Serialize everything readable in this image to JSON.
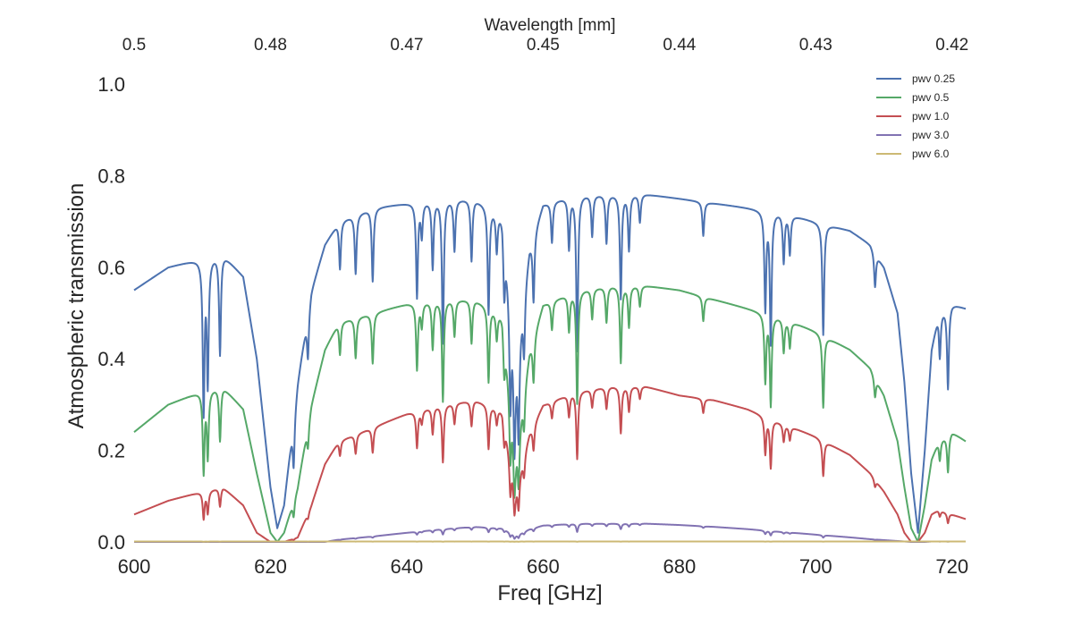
{
  "chart_data": {
    "type": "line",
    "title": "",
    "xlabel": "Freq [GHz]",
    "ylabel": "Atmospheric transmission",
    "top_xlabel": "Wavelength [mm]",
    "xlim": [
      600,
      722
    ],
    "ylim": [
      0,
      1.0
    ],
    "x_ticks": [
      600,
      620,
      640,
      660,
      680,
      700,
      720
    ],
    "y_ticks": [
      "0.0",
      "0.2",
      "0.4",
      "0.6",
      "0.8",
      "1.0"
    ],
    "top_ticks": [
      {
        "label": "0.5",
        "freq": 600
      },
      {
        "label": "0.48",
        "freq": 620
      },
      {
        "label": "0.47",
        "freq": 640
      },
      {
        "label": "0.45",
        "freq": 660
      },
      {
        "label": "0.44",
        "freq": 680
      },
      {
        "label": "0.43",
        "freq": 700
      },
      {
        "label": "0.42",
        "freq": 720
      }
    ],
    "grid": false,
    "legend_position": "top-right",
    "x": [
      600,
      605,
      610,
      613,
      616,
      618,
      620,
      621,
      622,
      624,
      626,
      628,
      630,
      635,
      640,
      645,
      650,
      654,
      656,
      658,
      660,
      665,
      670,
      675,
      680,
      685,
      690,
      695,
      700,
      705,
      708,
      710,
      712,
      713,
      714,
      715,
      716,
      717,
      718,
      720,
      722
    ],
    "series": [
      {
        "name": "pwv 0.25",
        "color": "#4c72b0",
        "values": [
          0.55,
          0.6,
          0.62,
          0.63,
          0.58,
          0.4,
          0.12,
          0.03,
          0.08,
          0.35,
          0.55,
          0.65,
          0.7,
          0.73,
          0.74,
          0.75,
          0.75,
          0.72,
          0.4,
          0.65,
          0.74,
          0.76,
          0.76,
          0.76,
          0.75,
          0.74,
          0.73,
          0.72,
          0.7,
          0.68,
          0.65,
          0.6,
          0.5,
          0.35,
          0.15,
          0.02,
          0.2,
          0.42,
          0.5,
          0.52,
          0.51
        ]
      },
      {
        "name": "pwv 0.5",
        "color": "#55a868",
        "values": [
          0.24,
          0.3,
          0.33,
          0.34,
          0.29,
          0.15,
          0.02,
          0.0,
          0.02,
          0.12,
          0.3,
          0.42,
          0.48,
          0.5,
          0.52,
          0.53,
          0.53,
          0.5,
          0.2,
          0.42,
          0.52,
          0.55,
          0.56,
          0.56,
          0.55,
          0.53,
          0.51,
          0.49,
          0.46,
          0.42,
          0.38,
          0.32,
          0.22,
          0.12,
          0.03,
          0.0,
          0.08,
          0.18,
          0.22,
          0.24,
          0.22
        ]
      },
      {
        "name": "pwv 1.0",
        "color": "#c44e52",
        "values": [
          0.06,
          0.09,
          0.11,
          0.12,
          0.08,
          0.02,
          0.0,
          0.0,
          0.0,
          0.01,
          0.08,
          0.17,
          0.22,
          0.25,
          0.28,
          0.3,
          0.31,
          0.29,
          0.12,
          0.24,
          0.3,
          0.33,
          0.34,
          0.34,
          0.32,
          0.31,
          0.29,
          0.26,
          0.23,
          0.19,
          0.15,
          0.11,
          0.06,
          0.02,
          0.0,
          0.0,
          0.02,
          0.06,
          0.07,
          0.06,
          0.05
        ]
      },
      {
        "name": "pwv 3.0",
        "color": "#8172b2",
        "values": [
          0.0,
          0.0,
          0.0,
          0.0,
          0.0,
          0.0,
          0.0,
          0.0,
          0.0,
          0.0,
          0.0,
          0.0,
          0.005,
          0.012,
          0.02,
          0.028,
          0.033,
          0.03,
          0.015,
          0.028,
          0.036,
          0.04,
          0.04,
          0.04,
          0.037,
          0.033,
          0.028,
          0.022,
          0.016,
          0.01,
          0.006,
          0.004,
          0.002,
          0.001,
          0.0,
          0.0,
          0.0,
          0.001,
          0.001,
          0.001,
          0.001
        ]
      },
      {
        "name": "pwv 6.0",
        "color": "#ccb974",
        "values": [
          0.001,
          0.001,
          0.001,
          0.001,
          0.001,
          0.001,
          0.001,
          0.001,
          0.001,
          0.001,
          0.001,
          0.001,
          0.001,
          0.001,
          0.001,
          0.001,
          0.001,
          0.001,
          0.001,
          0.001,
          0.001,
          0.001,
          0.001,
          0.001,
          0.001,
          0.001,
          0.001,
          0.001,
          0.001,
          0.001,
          0.001,
          0.001,
          0.001,
          0.001,
          0.001,
          0.001,
          0.001,
          0.001,
          0.001,
          0.001,
          0.001
        ]
      }
    ],
    "absorption_lines": [
      {
        "f": 610.2,
        "depth": 0.55
      },
      {
        "f": 610.8,
        "depth": 0.45
      },
      {
        "f": 612.6,
        "depth": 0.35
      },
      {
        "f": 623.4,
        "depth": 0.4
      },
      {
        "f": 625.5,
        "depth": 0.2
      },
      {
        "f": 630.2,
        "depth": 0.15
      },
      {
        "f": 632.5,
        "depth": 0.18
      },
      {
        "f": 635.0,
        "depth": 0.22
      },
      {
        "f": 641.5,
        "depth": 0.28
      },
      {
        "f": 642.2,
        "depth": 0.1
      },
      {
        "f": 643.8,
        "depth": 0.2
      },
      {
        "f": 645.3,
        "depth": 0.42
      },
      {
        "f": 647.0,
        "depth": 0.15
      },
      {
        "f": 649.5,
        "depth": 0.18
      },
      {
        "f": 652.0,
        "depth": 0.32
      },
      {
        "f": 653.2,
        "depth": 0.12
      },
      {
        "f": 654.3,
        "depth": 0.2
      },
      {
        "f": 655.2,
        "depth": 0.45
      },
      {
        "f": 655.8,
        "depth": 0.55
      },
      {
        "f": 656.4,
        "depth": 0.5
      },
      {
        "f": 657.2,
        "depth": 0.25
      },
      {
        "f": 658.6,
        "depth": 0.22
      },
      {
        "f": 661.3,
        "depth": 0.12
      },
      {
        "f": 663.8,
        "depth": 0.15
      },
      {
        "f": 665.0,
        "depth": 0.45
      },
      {
        "f": 667.2,
        "depth": 0.12
      },
      {
        "f": 669.3,
        "depth": 0.14
      },
      {
        "f": 671.4,
        "depth": 0.3
      },
      {
        "f": 672.6,
        "depth": 0.16
      },
      {
        "f": 674.2,
        "depth": 0.08
      },
      {
        "f": 683.5,
        "depth": 0.1
      },
      {
        "f": 692.6,
        "depth": 0.3
      },
      {
        "f": 693.4,
        "depth": 0.4
      },
      {
        "f": 695.3,
        "depth": 0.15
      },
      {
        "f": 696.2,
        "depth": 0.12
      },
      {
        "f": 701.1,
        "depth": 0.35
      },
      {
        "f": 708.7,
        "depth": 0.12
      },
      {
        "f": 718.2,
        "depth": 0.2
      },
      {
        "f": 719.4,
        "depth": 0.35
      }
    ]
  }
}
